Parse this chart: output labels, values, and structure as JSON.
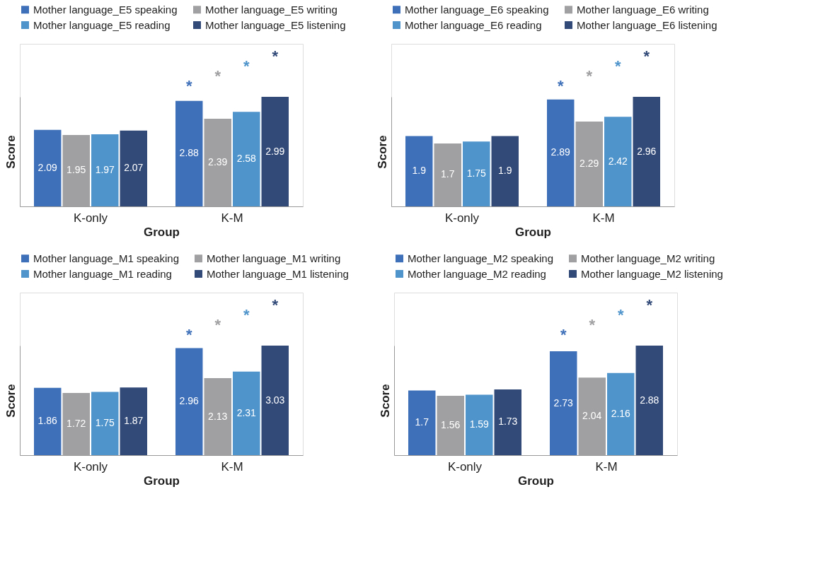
{
  "chart_data": [
    {
      "type": "bar",
      "xlabel": "Group",
      "ylabel": "Score",
      "categories": [
        "K-only",
        "K-M"
      ],
      "data_labels": true,
      "legend": "top",
      "grid": false,
      "series": [
        {
          "name": "Mother language_E5 speaking",
          "color": "#3e70b9",
          "values": [
            2.09,
            2.88
          ]
        },
        {
          "name": "Mother language_E5 writing",
          "color": "#a0a0a2",
          "values": [
            1.95,
            2.39
          ]
        },
        {
          "name": "Mother language_E5 reading",
          "color": "#4f95cc",
          "values": [
            1.97,
            2.58
          ]
        },
        {
          "name": "Mother language_E5 listening",
          "color": "#324a78",
          "values": [
            2.07,
            2.99
          ]
        }
      ],
      "annotations": [
        "*",
        "*",
        "*",
        "*"
      ]
    },
    {
      "type": "bar",
      "xlabel": "Group",
      "ylabel": "Score",
      "categories": [
        "K-only",
        "K-M"
      ],
      "data_labels": true,
      "legend": "top",
      "grid": false,
      "series": [
        {
          "name": "Mother language_E6 speaking",
          "color": "#3e70b9",
          "values": [
            1.9,
            2.89
          ]
        },
        {
          "name": "Mother language_E6 writing",
          "color": "#a0a0a2",
          "values": [
            1.7,
            2.29
          ]
        },
        {
          "name": "Mother language_E6 reading",
          "color": "#4f95cc",
          "values": [
            1.75,
            2.42
          ]
        },
        {
          "name": "Mother language_E6 listening",
          "color": "#324a78",
          "values": [
            1.9,
            2.96
          ]
        }
      ],
      "annotations": [
        "*",
        "*",
        "*",
        "*"
      ]
    },
    {
      "type": "bar",
      "xlabel": "Group",
      "ylabel": "Score",
      "categories": [
        "K-only",
        "K-M"
      ],
      "data_labels": true,
      "legend": "top",
      "grid": false,
      "series": [
        {
          "name": "Mother language_M1 speaking",
          "color": "#3e70b9",
          "values": [
            1.86,
            2.96
          ]
        },
        {
          "name": "Mother language_M1 writing",
          "color": "#a0a0a2",
          "values": [
            1.72,
            2.13
          ]
        },
        {
          "name": "Mother language_M1 reading",
          "color": "#4f95cc",
          "values": [
            1.75,
            2.31
          ]
        },
        {
          "name": "Mother language_M1 listening",
          "color": "#324a78",
          "values": [
            1.87,
            3.03
          ]
        }
      ],
      "annotations": [
        "*",
        "*",
        "*",
        "*"
      ]
    },
    {
      "type": "bar",
      "xlabel": "Group",
      "ylabel": "Score",
      "categories": [
        "K-only",
        "K-M"
      ],
      "data_labels": true,
      "legend": "top",
      "grid": false,
      "series": [
        {
          "name": "Mother language_M2 speaking",
          "color": "#3e70b9",
          "values": [
            1.7,
            2.73
          ]
        },
        {
          "name": "Mother language_M2 writing",
          "color": "#a0a0a2",
          "values": [
            1.56,
            2.04
          ]
        },
        {
          "name": "Mother language_M2 reading",
          "color": "#4f95cc",
          "values": [
            1.59,
            2.16
          ]
        },
        {
          "name": "Mother language_M2 listening",
          "color": "#324a78",
          "values": [
            1.73,
            2.88
          ]
        }
      ],
      "annotations": [
        "*",
        "*",
        "*",
        "*"
      ]
    }
  ]
}
